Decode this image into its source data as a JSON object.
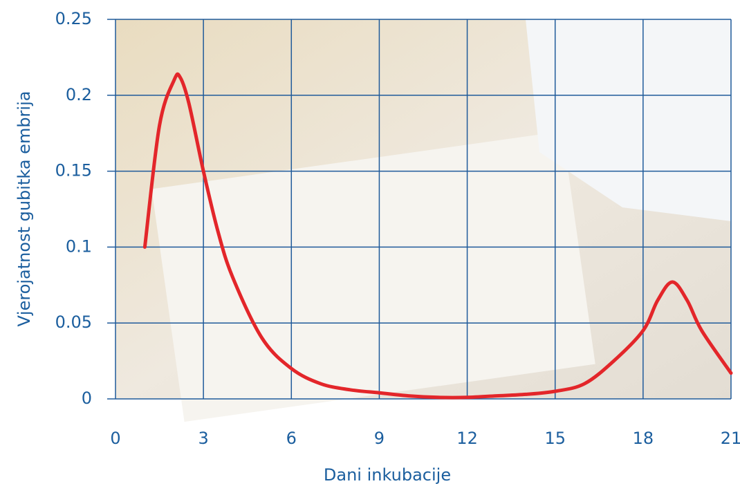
{
  "chart_data": {
    "type": "line",
    "x_label": "Dani inkubacije",
    "y_label": "Vjerojatnost gubitka embrija",
    "x": [
      1,
      1.5,
      2,
      2.2,
      2.5,
      3,
      3.5,
      4,
      5,
      6,
      7,
      8,
      9,
      10,
      11,
      12,
      13,
      14,
      15,
      16,
      17,
      18,
      18.5,
      19,
      19.5,
      20,
      21
    ],
    "values": [
      0.1,
      0.18,
      0.21,
      0.212,
      0.195,
      0.15,
      0.11,
      0.08,
      0.04,
      0.02,
      0.01,
      0.006,
      0.004,
      0.002,
      0.001,
      0.001,
      0.002,
      0.003,
      0.005,
      0.01,
      0.025,
      0.045,
      0.065,
      0.077,
      0.065,
      0.045,
      0.017
    ],
    "color": "#e3262a",
    "xlim": [
      0,
      21
    ],
    "xticks": [
      0,
      3,
      6,
      9,
      12,
      15,
      18,
      21
    ],
    "ylim": [
      0,
      0.25
    ],
    "yticks": [
      0,
      0.05,
      0.1,
      0.15,
      0.2,
      0.25
    ],
    "grid": true
  }
}
